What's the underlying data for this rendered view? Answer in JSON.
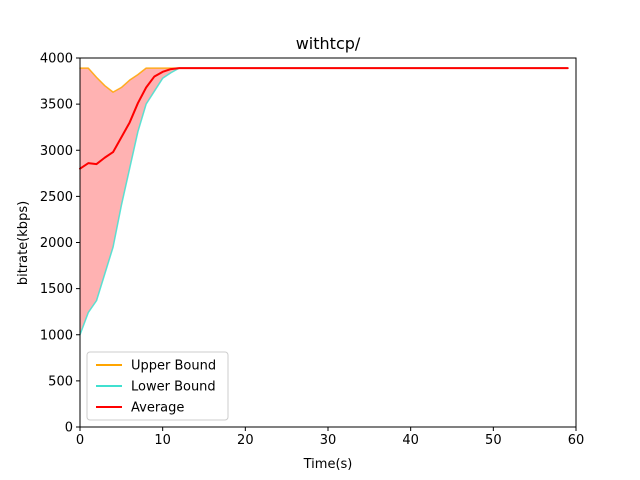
{
  "chart_data": {
    "type": "line",
    "title": "withtcp/",
    "xlabel": "Time(s)",
    "ylabel": "bitrate(kbps)",
    "xlim": [
      0,
      60
    ],
    "ylim": [
      0,
      4000
    ],
    "xticks": [
      0,
      10,
      20,
      30,
      40,
      50,
      60
    ],
    "yticks": [
      0,
      500,
      1000,
      1500,
      2000,
      2500,
      3000,
      3500,
      4000
    ],
    "grid": false,
    "legend_position": "lower-left",
    "x": [
      0,
      1,
      2,
      3,
      4,
      5,
      6,
      7,
      8,
      9,
      10,
      11,
      12,
      15,
      20,
      30,
      40,
      50,
      59
    ],
    "series": [
      {
        "name": "Upper Bound",
        "color": "#ffa500",
        "values": [
          3890,
          3890,
          3790,
          3700,
          3630,
          3680,
          3760,
          3820,
          3890,
          3890,
          3890,
          3890,
          3890,
          3890,
          3890,
          3890,
          3890,
          3890,
          3890
        ]
      },
      {
        "name": "Lower Bound",
        "color": "#40e0d0",
        "values": [
          1000,
          1240,
          1370,
          1660,
          1950,
          2400,
          2800,
          3200,
          3500,
          3640,
          3780,
          3840,
          3890,
          3890,
          3890,
          3890,
          3890,
          3890,
          3890
        ]
      },
      {
        "name": "Average",
        "color": "#ff0000",
        "values": [
          2800,
          2860,
          2850,
          2920,
          2980,
          3140,
          3300,
          3510,
          3680,
          3800,
          3850,
          3880,
          3890,
          3890,
          3890,
          3890,
          3890,
          3890,
          3890
        ]
      }
    ],
    "band": {
      "between": [
        "Lower Bound",
        "Upper Bound"
      ],
      "color": "#ff0000",
      "opacity": 0.3
    }
  }
}
